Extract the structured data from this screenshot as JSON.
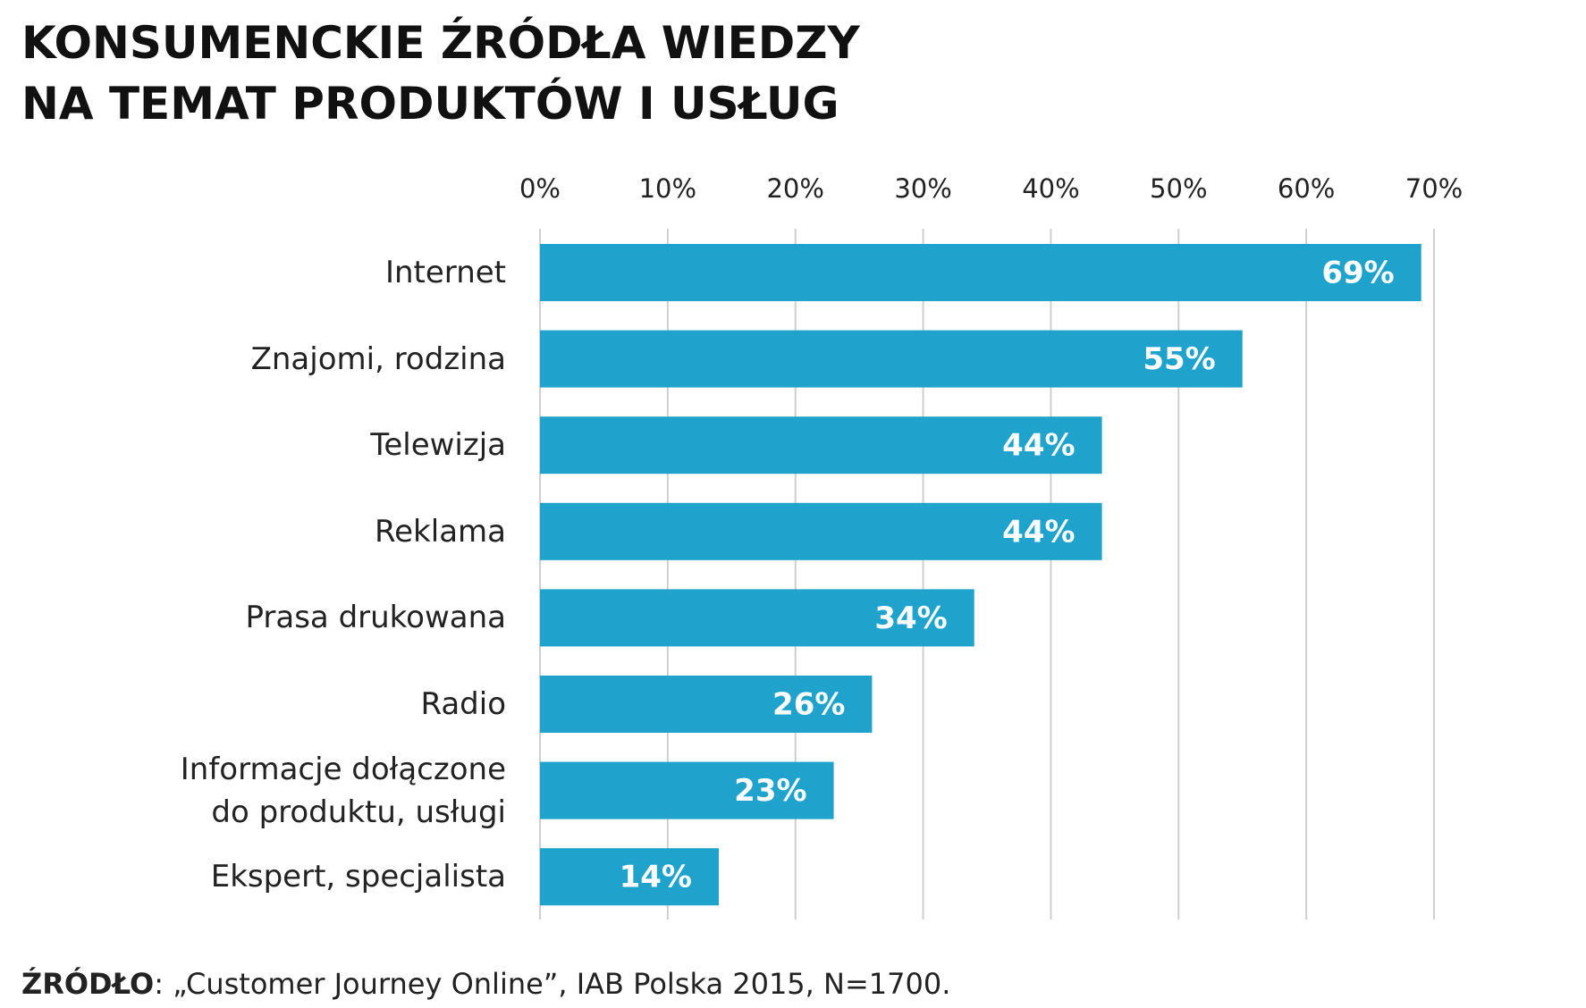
{
  "chart_data": {
    "type": "bar",
    "orientation": "horizontal",
    "title": "KONSUMENCKIE ŹRÓDŁA WIEDZY\nNA TEMAT PRODUKTÓW I USŁUG",
    "categories": [
      "Internet",
      "Znajomi, rodzina",
      "Telewizja",
      "Reklama",
      "Prasa drukowana",
      "Radio",
      "Informacje dołączone\ndo produktu, usługi",
      "Ekspert, specjalista"
    ],
    "values": [
      69,
      55,
      44,
      44,
      34,
      26,
      23,
      14
    ],
    "value_labels": [
      "69%",
      "55%",
      "44%",
      "44%",
      "34%",
      "26%",
      "23%",
      "14%"
    ],
    "color": "#1fa2cb",
    "xlim": [
      0,
      70
    ],
    "xticks": [
      {
        "value": 0,
        "label": "0%"
      },
      {
        "value": 10,
        "label": "10%"
      },
      {
        "value": 20,
        "label": "20%"
      },
      {
        "value": 30,
        "label": "30%"
      },
      {
        "value": 40,
        "label": "40%"
      },
      {
        "value": 50,
        "label": "50%"
      },
      {
        "value": 60,
        "label": "60%"
      },
      {
        "value": 70,
        "label": "70%"
      }
    ],
    "grid": true,
    "source_label": "ŹRÓDŁO",
    "source_text": ": „Customer Journey Online”, IAB Polska 2015, N=1700."
  }
}
